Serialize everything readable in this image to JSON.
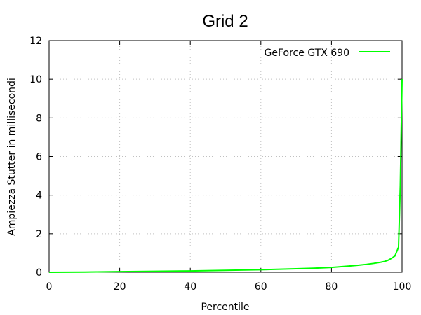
{
  "chart_data": {
    "type": "line",
    "title": "Grid 2",
    "xlabel": "Percentile",
    "ylabel": "Ampiezza Stutter in millisecondi",
    "xlim": [
      0,
      100
    ],
    "ylim": [
      0,
      12
    ],
    "xticks": [
      0,
      20,
      40,
      60,
      80,
      100
    ],
    "yticks": [
      0,
      2,
      4,
      6,
      8,
      10,
      12
    ],
    "grid": true,
    "legend_position": "top-right",
    "series": [
      {
        "name": "GeForce GTX 690",
        "color": "#00ff00",
        "x": [
          0,
          10,
          20,
          30,
          40,
          50,
          60,
          70,
          75,
          80,
          85,
          88,
          90,
          92,
          94,
          95,
          96,
          97,
          98,
          99,
          99.5,
          100
        ],
        "y": [
          0.0,
          0.01,
          0.03,
          0.05,
          0.07,
          0.1,
          0.13,
          0.18,
          0.21,
          0.25,
          0.32,
          0.37,
          0.41,
          0.46,
          0.52,
          0.56,
          0.62,
          0.72,
          0.85,
          1.3,
          4.5,
          10.0
        ]
      }
    ]
  }
}
